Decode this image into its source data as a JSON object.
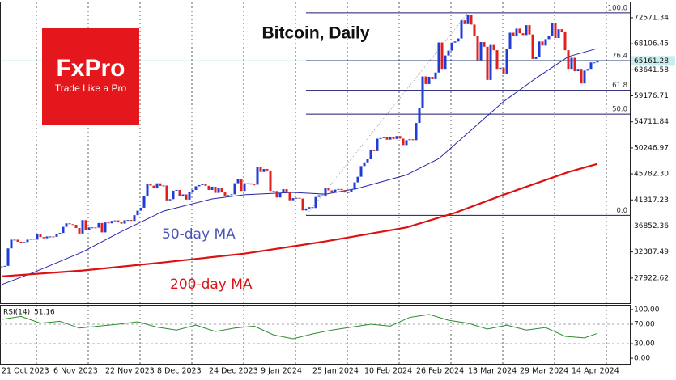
{
  "chart_data": {
    "type": "candlestick",
    "title": "Bitcoin, Daily",
    "logo": {
      "name": "FxPro",
      "tagline": "Trade Like a Pro"
    },
    "categories": [
      "21 Oct 2023",
      null,
      null,
      null,
      null,
      null,
      null,
      null,
      null,
      null,
      null,
      null,
      null,
      null,
      null,
      null,
      "6 Nov 2023",
      null,
      null,
      null,
      null,
      null,
      null,
      null,
      null,
      null,
      null,
      null,
      null,
      null,
      null,
      null,
      "22 Nov 2023",
      null,
      null,
      null,
      null,
      null,
      null,
      null,
      null,
      null,
      null,
      null,
      null,
      null,
      null,
      null,
      "8 Dec 2023",
      null,
      null,
      null,
      null,
      null,
      null,
      null,
      null,
      null,
      null,
      null,
      null,
      null,
      null,
      null,
      "24 Dec 2023",
      null,
      null,
      null,
      null,
      null,
      null,
      null,
      null,
      null,
      null,
      null,
      null,
      null,
      null,
      null,
      "9 Jan 2024",
      null,
      null,
      null,
      null,
      null,
      null,
      null,
      null,
      null,
      null,
      null,
      null,
      null,
      null,
      null,
      "25 Jan 2024",
      null,
      null,
      null,
      null,
      null,
      null,
      null,
      null,
      null,
      null,
      null,
      null,
      null,
      null,
      null,
      "10 Feb 2024",
      null,
      null,
      null,
      null,
      null,
      null,
      null,
      null,
      null,
      null,
      null,
      null,
      null,
      null,
      null,
      "26 Feb 2024",
      null,
      null,
      null,
      null,
      null,
      null,
      null,
      null,
      null,
      null,
      null,
      null,
      null,
      null,
      null,
      "13 Mar 2024",
      null,
      null,
      null,
      null,
      null,
      null,
      null,
      null,
      null,
      null,
      null,
      null,
      null,
      null,
      null,
      "29 Mar 2024",
      null,
      null,
      null,
      null,
      null,
      null,
      null,
      null,
      null,
      null,
      null,
      null,
      null,
      null,
      null,
      "14 Apr 2024",
      null,
      null,
      null,
      null,
      null,
      null,
      null,
      null
    ],
    "close": [
      29900,
      30000,
      33000,
      34500,
      34500,
      34150,
      33900,
      34100,
      34500,
      34650,
      34500,
      35400,
      34950,
      34750,
      35050,
      35050,
      35000,
      35450,
      35650,
      36700,
      37300,
      37150,
      37050,
      36500,
      35550,
      37850,
      36150,
      36600,
      36600,
      36550,
      37350,
      35750,
      37450,
      37300,
      37720,
      37800,
      37460,
      37250,
      37830,
      37870,
      37720,
      38700,
      39470,
      39980,
      41980,
      44080,
      43770,
      43290,
      44170,
      43720,
      43790,
      41240,
      41450,
      42900,
      43020,
      41940,
      42260,
      41370,
      42660,
      43020,
      43650,
      43860,
      43990,
      43740,
      43020,
      43580,
      42520,
      43440,
      42590,
      42070,
      42140,
      42280,
      44180,
      44950,
      42850,
      44180,
      44160,
      43960,
      43930,
      46970,
      46110,
      46630,
      46370,
      42850,
      42840,
      41730,
      42510,
      43150,
      42740,
      41260,
      41620,
      41670,
      41550,
      39510,
      39850,
      40080,
      39930,
      41820,
      42120,
      42030,
      43300,
      42950,
      42580,
      43080,
      43190,
      43000,
      42580,
      42660,
      43080,
      44330,
      45290,
      47130,
      47770,
      48290,
      49960,
      49700,
      51830,
      51920,
      52160,
      51660,
      52120,
      51780,
      52280,
      51840,
      50730,
      51570,
      51730,
      51570,
      54520,
      57090,
      62500,
      61200,
      62440,
      62030,
      63170,
      68330,
      63800,
      66100,
      66930,
      68300,
      68500,
      69020,
      72120,
      71480,
      73080,
      71400,
      69400,
      65300,
      68400,
      67600,
      61900,
      67900,
      67000,
      63800,
      64000,
      63000,
      67200,
      70000,
      69400,
      70700,
      69900,
      69600,
      71300,
      69700,
      65500,
      65900,
      68500,
      67800,
      68900,
      69400,
      71600,
      69100,
      70600,
      70100,
      67000,
      63800,
      65700,
      63400,
      63800,
      61300,
      63500,
      63800,
      64900,
      64900,
      65161.28
    ],
    "up_color": "#1f3cd6",
    "down_color": "#e0201c",
    "current_price_color": "#33aaaa",
    "ylim": [
      23600,
      75200
    ],
    "yticks": [
      72571.34,
      68106.45,
      63641.58,
      59176.71,
      54711.84,
      50246.97,
      {
        "value": 45782.3,
        "label": "45782.30"
      },
      41317.23,
      36852.36,
      32387.49,
      27922.62
    ],
    "grid": true,
    "series": [
      {
        "name": "50-day MA",
        "color": "#2626a8",
        "x": [
          0,
          10,
          25,
          37,
          50,
          65,
          75,
          90,
          100,
          110,
          125,
          135,
          145,
          155,
          165,
          175,
          184
        ],
        "values": [
          26800,
          28900,
          32400,
          35900,
          39400,
          41500,
          42200,
          42600,
          42300,
          43300,
          45600,
          48400,
          53300,
          58200,
          62200,
          65900,
          67300
        ]
      },
      {
        "name": "200-day MA",
        "color": "#dd1111",
        "x": [
          0,
          25,
          50,
          75,
          100,
          125,
          140,
          155,
          175,
          184
        ],
        "values": [
          28200,
          29200,
          30600,
          32100,
          34200,
          36600,
          39100,
          42200,
          46100,
          47500
        ]
      }
    ],
    "fibonacci": {
      "anchor_index": [
        94,
        144
      ],
      "range": [
        38670,
        73410
      ],
      "levels": [
        {
          "value": 0,
          "label": "0.0"
        },
        {
          "value": 50,
          "label": "50.0"
        },
        61.8,
        76.4,
        {
          "value": 100,
          "label": "100.0"
        }
      ]
    },
    "rsi": {
      "name": "RSI(14)",
      "color": "#2e8b2e",
      "ylim": [
        -11.5,
        108.2
      ],
      "yticks": [
        {
          "value": 100,
          "label": "100.00"
        },
        {
          "value": 70,
          "label": "70.00"
        },
        {
          "value": 30,
          "label": "30.00"
        },
        {
          "value": 0,
          "label": "0.00"
        }
      ],
      "x": [
        0,
        6,
        12,
        18,
        24,
        30,
        36,
        42,
        48,
        54,
        60,
        66,
        72,
        78,
        84,
        90,
        96,
        102,
        108,
        114,
        120,
        126,
        132,
        138,
        144,
        150,
        156,
        162,
        168,
        174,
        180,
        184
      ],
      "values": [
        80,
        86,
        72,
        76,
        62,
        66,
        70,
        75,
        64,
        58,
        68,
        55,
        62,
        66,
        48,
        40,
        50,
        58,
        64,
        70,
        66,
        84,
        90,
        78,
        72,
        60,
        68,
        58,
        63,
        45,
        42,
        51.16
      ]
    }
  }
}
